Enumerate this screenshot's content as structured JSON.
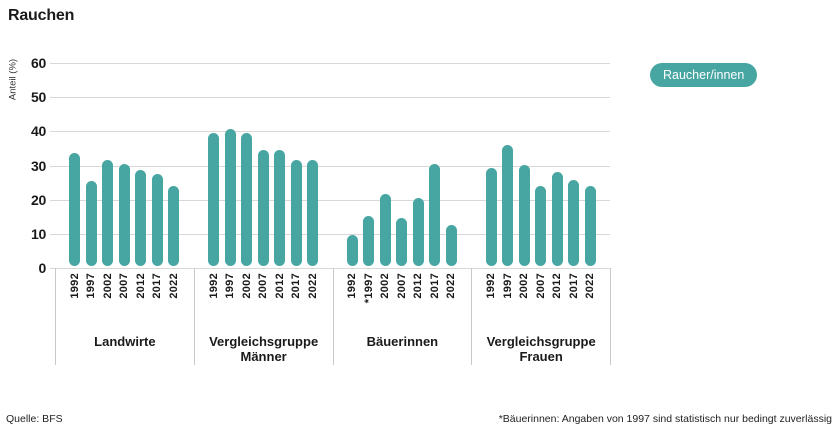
{
  "title": "Rauchen",
  "legend": {
    "label": "Raucher/innen"
  },
  "footer": {
    "source": "Quelle: BFS",
    "footnote": "*Bäuerinnen: Angaben von 1997 sind statistisch nur bedingt zuverlässig"
  },
  "colors": {
    "bar": "#47a6a2",
    "grid": "#d8d8d8",
    "separator": "#c9c9c9",
    "legend_bg": "#47a6a2",
    "legend_text": "#ffffff"
  },
  "chart_data": {
    "type": "bar",
    "title": "Rauchen",
    "xlabel": "",
    "ylabel": "Anteil (%)",
    "unit": "%",
    "ylim": [
      0,
      60
    ],
    "yticks": [
      0,
      10,
      20,
      30,
      40,
      50,
      60
    ],
    "grid": true,
    "legend_entries": [
      "Raucher/innen"
    ],
    "legend_position": "right",
    "groups": [
      {
        "label": "Landwirte",
        "categories": [
          "1992",
          "1997",
          "2002",
          "2007",
          "2012",
          "2017",
          "2022"
        ],
        "values": [
          33,
          25,
          31,
          30,
          28,
          27,
          23.5
        ]
      },
      {
        "label": "Vergleichsgruppe Männer",
        "categories": [
          "1992",
          "1997",
          "2002",
          "2007",
          "2012",
          "2017",
          "2022"
        ],
        "values": [
          39,
          40,
          39,
          34,
          34,
          31,
          31
        ]
      },
      {
        "label": "Bäuerinnen",
        "categories": [
          "1992",
          "*1997",
          "2002",
          "2007",
          "2012",
          "2017",
          "2022"
        ],
        "values": [
          9,
          14.5,
          21,
          14,
          20,
          30,
          12
        ]
      },
      {
        "label": "Vergleichsgruppe Frauen",
        "categories": [
          "1992",
          "1997",
          "2002",
          "2007",
          "2012",
          "2017",
          "2022"
        ],
        "values": [
          28.5,
          35.5,
          29.5,
          23.5,
          27.5,
          25,
          23.5
        ]
      }
    ]
  }
}
